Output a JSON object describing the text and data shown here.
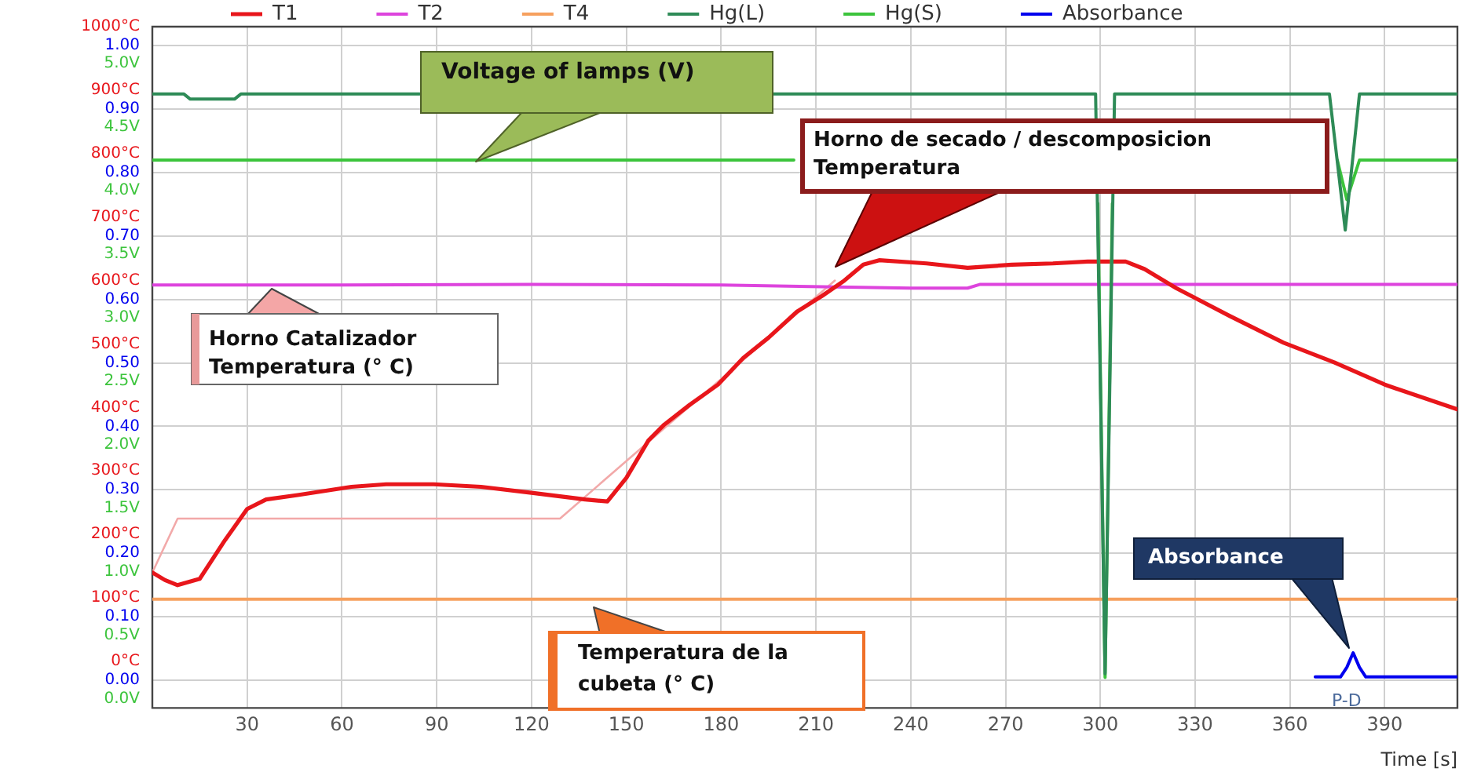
{
  "chart_data": {
    "type": "line",
    "xlabel": "Time [s]",
    "xlim": [
      0,
      413
    ],
    "xticks": [
      30,
      60,
      90,
      120,
      150,
      180,
      210,
      240,
      270,
      300,
      330,
      360,
      390
    ],
    "ylim": [
      -73.5,
      1000
    ],
    "yticks": [
      {
        "value": 0,
        "label": "0°C"
      },
      {
        "value": 100,
        "label": "100°C"
      },
      {
        "value": 200,
        "label": "200°C"
      },
      {
        "value": 300,
        "label": "300°C"
      },
      {
        "value": 400,
        "label": "400°C"
      },
      {
        "value": 500,
        "label": "500°C"
      },
      {
        "value": 600,
        "label": "600°C"
      },
      {
        "value": 700,
        "label": "700°C"
      },
      {
        "value": 800,
        "label": "800°C"
      },
      {
        "value": 900,
        "label": "900°C"
      },
      {
        "value": 1000,
        "label": "1000°C"
      }
    ],
    "y2lim": [
      -0.044,
      1.03
    ],
    "y2ticks": [
      {
        "value": 0,
        "label": "0.00"
      },
      {
        "value": 0.1,
        "label": "0.10"
      },
      {
        "value": 0.2,
        "label": "0.20"
      },
      {
        "value": 0.3,
        "label": "0.30"
      },
      {
        "value": 0.4,
        "label": "0.40"
      },
      {
        "value": 0.5,
        "label": "0.50"
      },
      {
        "value": 0.6,
        "label": "0.60"
      },
      {
        "value": 0.7,
        "label": "0.70"
      },
      {
        "value": 0.8,
        "label": "0.80"
      },
      {
        "value": 0.9,
        "label": "0.90"
      },
      {
        "value": 1,
        "label": "1.00"
      }
    ],
    "y3lim": [
      -0.07,
      5.29
    ],
    "y3ticks": [
      {
        "value": 0,
        "label": "0.0V"
      },
      {
        "value": 0.5,
        "label": "0.5V"
      },
      {
        "value": 1,
        "label": "1.0V"
      },
      {
        "value": 1.5,
        "label": "1.5V"
      },
      {
        "value": 2,
        "label": "2.0V"
      },
      {
        "value": 2.5,
        "label": "2.5V"
      },
      {
        "value": 3,
        "label": "3.0V"
      },
      {
        "value": 3.5,
        "label": "3.5V"
      },
      {
        "value": 4,
        "label": "4.0V"
      },
      {
        "value": 4.5,
        "label": "4.5V"
      },
      {
        "value": 5,
        "label": "5.0V"
      }
    ],
    "series": [
      {
        "name": "T1",
        "color": "#e8161b",
        "axis": "y",
        "x": [
          0,
          4,
          8,
          15,
          23,
          30,
          36,
          46,
          63,
          74,
          89,
          104,
          121,
          137,
          144,
          150,
          157,
          162,
          170,
          179,
          187,
          195,
          204,
          212,
          219,
          225,
          230,
          245,
          258,
          272,
          285,
          296,
          308,
          314,
          324,
          341,
          358,
          374,
          390,
          413
        ],
        "values": [
          140,
          128,
          120,
          130,
          191,
          240,
          255,
          262,
          275,
          279,
          279,
          275,
          265,
          255,
          252,
          289,
          348,
          373,
          404,
          436,
          478,
          510,
          551,
          576,
          600,
          625,
          632,
          627,
          620,
          625,
          627,
          630,
          630,
          618,
          588,
          544,
          502,
          471,
          436,
          397
        ]
      },
      {
        "name": "T2",
        "color": "#dd44dd",
        "axis": "y",
        "x": [
          0,
          60,
          120,
          180,
          240,
          258,
          262,
          413
        ],
        "values": [
          593,
          593,
          594,
          593,
          588,
          588,
          594,
          594
        ]
      },
      {
        "name": "T4",
        "color": "#f6a05e",
        "axis": "y",
        "x": [
          0,
          413
        ],
        "values": [
          98,
          98
        ]
      },
      {
        "name": "Hg(L)",
        "color": "#2e8b57",
        "axis": "y3",
        "x": [
          0,
          10,
          12,
          26,
          28,
          298.5,
          301.5,
          304.5,
          372.5,
          377.5,
          382,
          413
        ],
        "values": [
          4.76,
          4.76,
          4.72,
          4.72,
          4.76,
          4.76,
          0.2,
          4.76,
          4.76,
          3.69,
          4.76,
          4.76
        ]
      },
      {
        "name": "Hg(S)",
        "color": "#3cc43c",
        "axis": "y3",
        "x": [
          0,
          203,
          250,
          299.2,
          301.5,
          303.8,
          340,
          375,
          378,
          382,
          413
        ],
        "values": [
          4.24,
          4.24,
          null,
          3.9,
          0.17,
          3.9,
          null,
          4.24,
          3.93,
          4.24,
          4.24
        ]
      },
      {
        "name": "Absorbance",
        "color": "#0000ee",
        "axis": "y2",
        "x": [
          368,
          376,
          378,
          380,
          382,
          384,
          413
        ],
        "values": [
          0.005,
          0.005,
          0.02,
          0.043,
          0.02,
          0.005,
          0.005
        ]
      },
      {
        "color": "#f2a9a9",
        "axis": "y",
        "x": [
          0,
          8,
          129,
          216
        ],
        "values": [
          140,
          225,
          225,
          600
        ]
      }
    ],
    "annotations": [
      "Voltage of lamps (V)",
      "Horno de secado / descomposicion Temperatura",
      "Horno Catalizador Temperatura (° C)",
      "Temperatura de la cubeta (° C)",
      "Absorbance",
      "P-D"
    ],
    "legend": "top",
    "grid": true,
    "marker": "none",
    "line_style": "solid"
  }
}
